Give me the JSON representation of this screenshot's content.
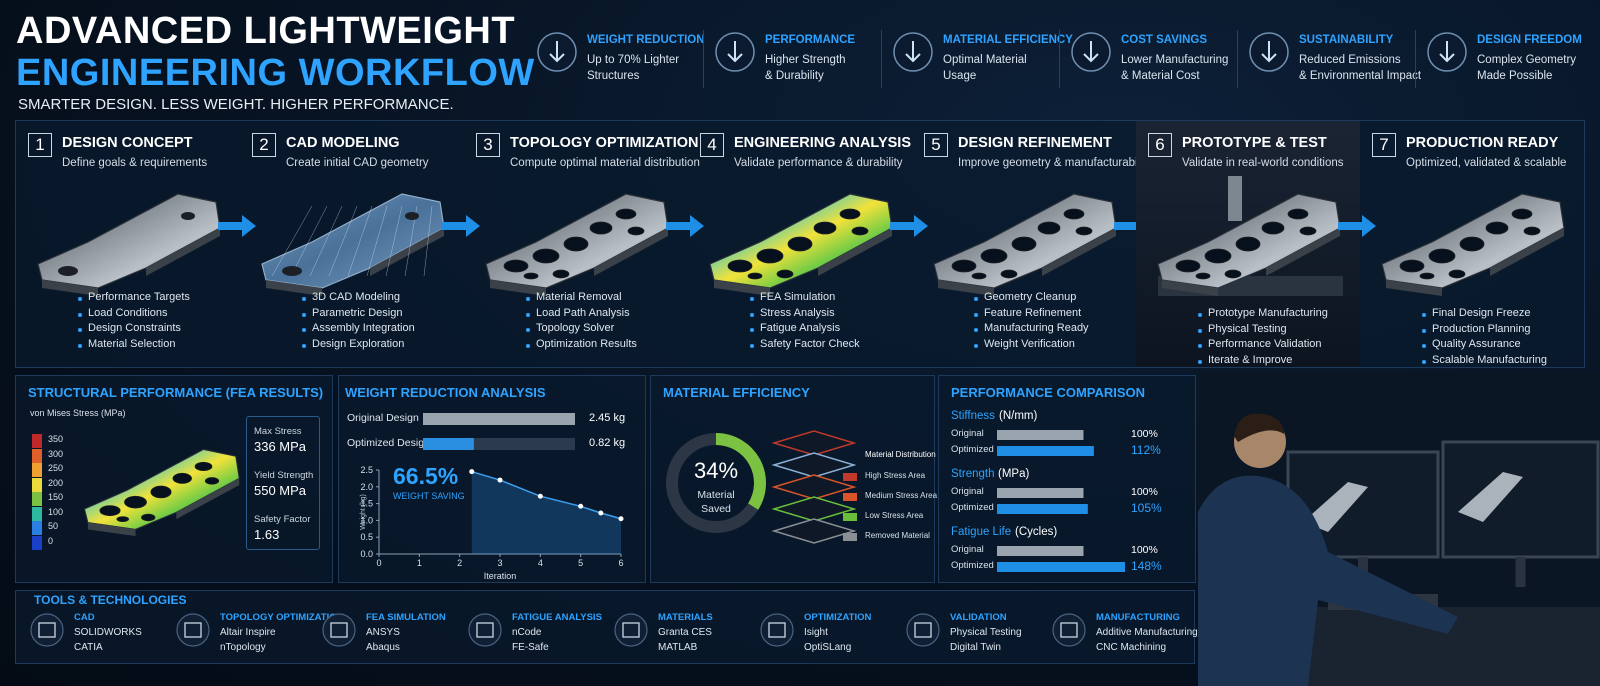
{
  "header": {
    "title_line1": "ADVANCED LIGHTWEIGHT",
    "title_line2": "ENGINEERING WORKFLOW",
    "subtitle": "SMARTER DESIGN. LESS WEIGHT. HIGHER PERFORMANCE."
  },
  "benefits": [
    {
      "title": "WEIGHT REDUCTION",
      "lines": [
        "Up to 70% Lighter",
        "Structures"
      ]
    },
    {
      "title": "PERFORMANCE",
      "lines": [
        "Higher Strength",
        "& Durability"
      ]
    },
    {
      "title": "MATERIAL EFFICIENCY",
      "lines": [
        "Optimal Material",
        "Usage"
      ]
    },
    {
      "title": "COST SAVINGS",
      "lines": [
        "Lower Manufacturing",
        "& Material Cost"
      ]
    },
    {
      "title": "SUSTAINABILITY",
      "lines": [
        "Reduced Emissions",
        "& Environmental Impact"
      ]
    },
    {
      "title": "DESIGN FREEDOM",
      "lines": [
        "Complex Geometry",
        "Made Possible"
      ]
    }
  ],
  "steps": [
    {
      "number": 1,
      "title": "DESIGN CONCEPT",
      "subtitle": "Define goals & requirements",
      "bullets": [
        "Performance Targets",
        "Load Conditions",
        "Design Constraints",
        "Material Selection"
      ]
    },
    {
      "number": 2,
      "title": "CAD MODELING",
      "subtitle": "Create initial CAD geometry",
      "bullets": [
        "3D CAD Modeling",
        "Parametric Design",
        "Assembly Integration",
        "Design Exploration"
      ]
    },
    {
      "number": 3,
      "title": "TOPOLOGY OPTIMIZATION",
      "subtitle": "Compute optimal material distribution",
      "bullets": [
        "Material Removal",
        "Load Path Analysis",
        "Topology Solver",
        "Optimization Results"
      ]
    },
    {
      "number": 4,
      "title": "ENGINEERING ANALYSIS",
      "subtitle": "Validate performance & durability",
      "bullets": [
        "FEA Simulation",
        "Stress Analysis",
        "Fatigue Analysis",
        "Safety Factor Check"
      ]
    },
    {
      "number": 5,
      "title": "DESIGN REFINEMENT",
      "subtitle": "Improve geometry & manufacturability",
      "bullets": [
        "Geometry Cleanup",
        "Feature Refinement",
        "Manufacturing Ready",
        "Weight Verification"
      ]
    },
    {
      "number": 6,
      "title": "PROTOTYPE & TEST",
      "subtitle": "Validate in real-world conditions",
      "bullets": [
        "Prototype Manufacturing",
        "Physical Testing",
        "Performance Validation",
        "Iterate & Improve"
      ]
    },
    {
      "number": 7,
      "title": "PRODUCTION READY",
      "subtitle": "Optimized, validated & scalable",
      "bullets": [
        "Final Design Freeze",
        "Production Planning",
        "Quality Assurance",
        "Scalable Manufacturing"
      ]
    }
  ],
  "fea": {
    "title": "STRUCTURAL PERFORMANCE (FEA RESULTS)",
    "legend_title": "von Mises Stress (MPa)",
    "legend_ticks": [
      350,
      300,
      250,
      200,
      150,
      100,
      50,
      0
    ],
    "stats": [
      {
        "label": "Max Stress",
        "value": "336 MPa"
      },
      {
        "label": "Yield Strength",
        "value": "550 MPa"
      },
      {
        "label": "Safety Factor",
        "value": 1.63
      }
    ]
  },
  "weight": {
    "title": "WEIGHT REDUCTION ANALYSIS",
    "bars": {
      "type": "bar",
      "categories": [
        "Original Design",
        "Optimized Design"
      ],
      "values": [
        2.45,
        0.82
      ],
      "value_labels": [
        "2.45 kg",
        "0.82 kg"
      ],
      "colors": [
        "#9aa4ae",
        "#2a8fe0"
      ]
    },
    "saving": "66.5%",
    "saving_label": "WEIGHT SAVING",
    "line": {
      "type": "line",
      "x": [
        2.3,
        3,
        4,
        5,
        5.5,
        6
      ],
      "values": [
        2.45,
        2.2,
        1.72,
        1.42,
        1.22,
        1.05
      ],
      "xlim": [
        0,
        6
      ],
      "ylim": [
        0,
        2.5
      ],
      "xticks": [
        0,
        1,
        2,
        3,
        4,
        5,
        6
      ],
      "yticks": [
        {
          "value": 0,
          "label": "0.0"
        },
        0.5,
        {
          "value": 1,
          "label": "1.0"
        },
        1.5,
        {
          "value": 2,
          "label": "2.0"
        },
        2.5
      ],
      "y_label": "Weight (kg)",
      "x_label": "Iteration",
      "color": "#3aa0f0"
    }
  },
  "material": {
    "title": "MATERIAL EFFICIENCY",
    "type": "donut",
    "value": 34,
    "value_label": "34%",
    "caption": "Material Saved",
    "color": "#7cc242",
    "legend_title": "Material Distribution",
    "legend": [
      {
        "name": "High Stress Area",
        "color": "#c0392b"
      },
      {
        "name": "Medium Stress Area",
        "color": "#d9542a"
      },
      {
        "name": "Low Stress Area",
        "color": "#6abf3a"
      },
      {
        "name": "Removed Material",
        "color": "#8a8f96"
      }
    ]
  },
  "comparison": {
    "title": "PERFORMANCE COMPARISON",
    "groups": [
      {
        "name": "Stiffness",
        "unit": "(N/mm)",
        "categories": [
          "Original",
          "Optimized"
        ],
        "values": [
          100,
          112
        ],
        "value_labels": [
          "100%",
          "112%"
        ]
      },
      {
        "name": "Strength",
        "unit": "(MPa)",
        "categories": [
          "Original",
          "Optimized"
        ],
        "values": [
          100,
          105
        ],
        "value_labels": [
          "100%",
          "105%"
        ]
      },
      {
        "name": "Fatigue Life",
        "unit": "(Cycles)",
        "categories": [
          "Original",
          "Optimized"
        ],
        "values": [
          100,
          148
        ],
        "value_labels": [
          "100%",
          "148%"
        ]
      }
    ]
  },
  "tools": {
    "title": "TOOLS & TECHNOLOGIES",
    "items": [
      {
        "category": "CAD",
        "tools": [
          "SOLIDWORKS",
          "CATIA"
        ]
      },
      {
        "category": "TOPOLOGY OPTIMIZATION",
        "tools": [
          "Altair Inspire",
          "nTopology"
        ]
      },
      {
        "category": "FEA SIMULATION",
        "tools": [
          "ANSYS",
          "Abaqus"
        ]
      },
      {
        "category": "FATIGUE ANALYSIS",
        "tools": [
          "nCode",
          "FE-Safe"
        ]
      },
      {
        "category": "MATERIALS",
        "tools": [
          "Granta CES",
          "MATLAB"
        ]
      },
      {
        "category": "OPTIMIZATION",
        "tools": [
          "Isight",
          "OptiSLang"
        ]
      },
      {
        "category": "VALIDATION",
        "tools": [
          "Physical Testing",
          "Digital Twin"
        ]
      },
      {
        "category": "MANUFACTURING",
        "tools": [
          "Additive Manufacturing",
          "CNC Machining"
        ]
      }
    ]
  }
}
